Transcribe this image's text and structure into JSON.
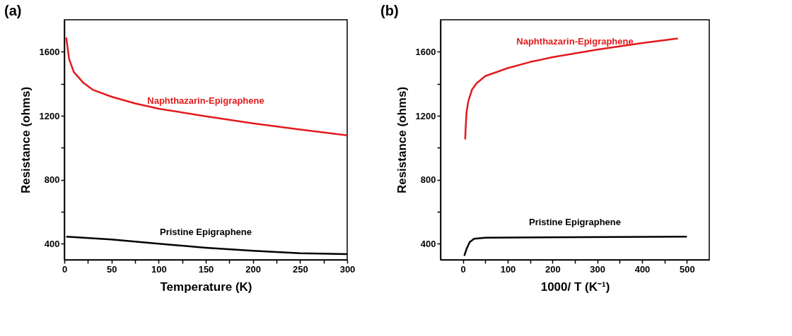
{
  "chart_data": [
    {
      "type": "line",
      "title": "(a)",
      "xlabel": "Temperature (K)",
      "ylabel": "Resistance (ohms)",
      "xlim": [
        0,
        300
      ],
      "xticks": [
        0,
        {
          "value": 25,
          "label": null
        },
        50,
        {
          "value": 75,
          "label": null
        },
        100,
        {
          "value": 125,
          "label": null
        },
        150,
        {
          "value": 175,
          "label": null
        },
        200,
        {
          "value": 225,
          "label": null
        },
        250,
        {
          "value": 275,
          "label": null
        },
        300
      ],
      "ylim": [
        300,
        1800
      ],
      "yticks": [
        400,
        {
          "value": 600,
          "label": null
        },
        800,
        {
          "value": 1000,
          "label": null
        },
        1200,
        {
          "value": 1400,
          "label": null
        },
        1600
      ],
      "grid": false,
      "legend": false,
      "series": [
        {
          "name": "Naphthazarin-Epigraphene",
          "color": "#e31a1c",
          "x": [
            2,
            5,
            10,
            20,
            30,
            50,
            75,
            100,
            150,
            200,
            250,
            300
          ],
          "values": [
            1689,
            1556,
            1474,
            1407,
            1363,
            1319,
            1277,
            1244,
            1197,
            1153,
            1114,
            1077
          ]
        },
        {
          "name": "Pristine Epigraphene",
          "color": "#000000",
          "x": [
            2,
            50,
            100,
            150,
            200,
            250,
            300
          ],
          "values": [
            444,
            427,
            400,
            375,
            356,
            341,
            335
          ]
        }
      ]
    },
    {
      "type": "line",
      "title": "(b)",
      "xlabel": "1000/ T (K⁻¹)",
      "ylabel": "Resistance (ohms)",
      "xlim": [
        -50,
        550
      ],
      "xticks": [
        0,
        {
          "value": 50,
          "label": null
        },
        100,
        {
          "value": 150,
          "label": null
        },
        200,
        {
          "value": 250,
          "label": null
        },
        300,
        {
          "value": 350,
          "label": null
        },
        400,
        {
          "value": 450,
          "label": null
        },
        500
      ],
      "ylim": [
        300,
        1800
      ],
      "yticks": [
        400,
        {
          "value": 600,
          "label": null
        },
        800,
        {
          "value": 1000,
          "label": null
        },
        1200,
        {
          "value": 1400,
          "label": null
        },
        1600
      ],
      "grid": false,
      "legend": false,
      "series": [
        {
          "name": "Naphthazarin-Epigraphene",
          "color": "#e31a1c",
          "x": [
            5,
            6,
            8,
            12,
            20,
            30,
            50,
            100,
            150,
            200,
            300,
            400,
            480
          ],
          "values": [
            1052,
            1120,
            1220,
            1291,
            1362,
            1402,
            1448,
            1498,
            1536,
            1566,
            1614,
            1654,
            1683
          ]
        },
        {
          "name": "Pristine Epigraphene",
          "color": "#000000",
          "x": [
            3,
            8,
            15,
            25,
            50,
            500
          ],
          "values": [
            325,
            367,
            410,
            431,
            438,
            445
          ]
        }
      ]
    }
  ]
}
